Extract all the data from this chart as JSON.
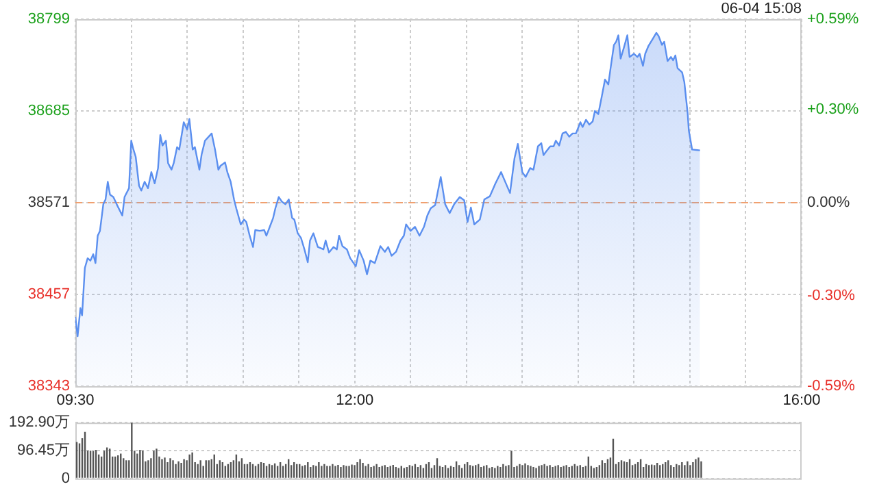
{
  "chart_data": [
    {
      "type": "area",
      "annotations": [
        "06-04 15:08"
      ],
      "x": [
        9.5,
        9.52,
        9.545,
        9.56,
        9.585,
        9.61,
        9.635,
        9.66,
        9.68,
        9.7,
        9.72,
        9.75,
        9.77,
        9.79,
        9.81,
        9.84,
        9.87,
        9.92,
        9.94,
        9.98,
        10.0,
        10.02,
        10.04,
        10.07,
        10.09,
        10.12,
        10.15,
        10.18,
        10.21,
        10.24,
        10.26,
        10.28,
        10.31,
        10.33,
        10.36,
        10.38,
        10.41,
        10.43,
        10.47,
        10.5,
        10.52,
        10.55,
        10.57,
        10.61,
        10.63,
        10.66,
        10.7,
        10.72,
        10.75,
        10.78,
        10.8,
        10.84,
        10.86,
        10.89,
        10.92,
        10.94,
        10.98,
        11.01,
        11.03,
        11.06,
        11.09,
        11.11,
        11.15,
        11.19,
        11.21,
        11.24,
        11.27,
        11.29,
        11.32,
        11.35,
        11.38,
        11.41,
        11.44,
        11.46,
        11.49,
        11.52,
        11.55,
        11.58,
        11.6,
        11.63,
        11.67,
        11.72,
        11.74,
        11.77,
        11.81,
        11.84,
        11.86,
        11.89,
        11.93,
        11.96,
        12.01,
        12.04,
        12.08,
        12.11,
        12.14,
        12.18,
        12.23,
        12.27,
        12.3,
        12.33,
        12.37,
        12.41,
        12.44,
        12.46,
        12.5,
        12.54,
        12.58,
        12.62,
        12.65,
        12.68,
        12.72,
        12.77,
        12.81,
        12.85,
        12.89,
        12.94,
        12.98,
        13.01,
        13.04,
        13.07,
        13.12,
        13.16,
        13.21,
        13.26,
        13.31,
        13.35,
        13.39,
        13.43,
        13.46,
        13.5,
        13.53,
        13.57,
        13.6,
        13.64,
        13.67,
        13.69,
        13.71,
        13.75,
        13.78,
        13.8,
        13.83,
        13.86,
        13.89,
        13.92,
        13.95,
        13.98,
        14.02,
        14.04,
        14.07,
        14.1,
        14.13,
        14.15,
        14.18,
        14.21,
        14.24,
        14.27,
        14.29,
        14.32,
        14.34,
        14.36,
        14.38,
        14.41,
        14.44,
        14.46,
        14.5,
        14.53,
        14.55,
        14.58,
        14.6,
        14.63,
        14.67,
        14.7,
        14.72,
        14.75,
        14.77,
        14.8,
        14.83,
        14.85,
        14.87,
        14.89,
        14.93,
        14.95,
        14.98,
        14.99,
        15.02,
        15.09
      ],
      "series": [
        {
          "color": "#5b8fef",
          "values": [
            38429,
            38405,
            38440,
            38431,
            38490,
            38502,
            38499,
            38507,
            38496,
            38530,
            38536,
            38569,
            38575,
            38597,
            38581,
            38578,
            38569,
            38555,
            38578,
            38589,
            38648,
            38637,
            38628,
            38592,
            38586,
            38597,
            38589,
            38609,
            38595,
            38614,
            38655,
            38642,
            38648,
            38620,
            38612,
            38620,
            38640,
            38637,
            38671,
            38662,
            38675,
            38637,
            38640,
            38612,
            38631,
            38648,
            38654,
            38657,
            38637,
            38612,
            38617,
            38621,
            38609,
            38597,
            38575,
            38564,
            38544,
            38550,
            38547,
            38530,
            38516,
            38537,
            38536,
            38537,
            38530,
            38541,
            38552,
            38564,
            38578,
            38572,
            38569,
            38575,
            38552,
            38550,
            38533,
            38527,
            38513,
            38497,
            38524,
            38533,
            38516,
            38513,
            38524,
            38509,
            38516,
            38513,
            38530,
            38517,
            38513,
            38502,
            38492,
            38512,
            38499,
            38482,
            38499,
            38496,
            38517,
            38510,
            38516,
            38505,
            38510,
            38524,
            38530,
            38544,
            38536,
            38541,
            38530,
            38541,
            38555,
            38564,
            38568,
            38603,
            38569,
            38558,
            38569,
            38578,
            38574,
            38547,
            38565,
            38544,
            38550,
            38575,
            38579,
            38595,
            38609,
            38596,
            38583,
            38626,
            38644,
            38609,
            38603,
            38614,
            38612,
            38641,
            38645,
            38630,
            38634,
            38641,
            38641,
            38648,
            38642,
            38657,
            38659,
            38653,
            38657,
            38657,
            38671,
            38665,
            38674,
            38668,
            38672,
            38685,
            38681,
            38702,
            38724,
            38718,
            38738,
            38767,
            38771,
            38779,
            38750,
            38764,
            38779,
            38752,
            38756,
            38752,
            38756,
            38741,
            38756,
            38766,
            38775,
            38782,
            38778,
            38767,
            38771,
            38747,
            38752,
            38748,
            38754,
            38738,
            38733,
            38721,
            38682,
            38661,
            38637,
            38636
          ]
        }
      ],
      "xlim": [
        9.5,
        16
      ],
      "xticks": [
        {
          "value": 9.5,
          "label": "09:30"
        },
        {
          "value": 10,
          "label": null
        },
        {
          "value": 10.5,
          "label": null
        },
        {
          "value": 11,
          "label": null
        },
        {
          "value": 11.5,
          "label": null
        },
        {
          "value": 12,
          "label": "12:00"
        },
        {
          "value": 12.5,
          "label": null
        },
        {
          "value": 13,
          "label": null
        },
        {
          "value": 13.5,
          "label": null
        },
        {
          "value": 14,
          "label": null
        },
        {
          "value": 14.5,
          "label": null
        },
        {
          "value": 15,
          "label": null
        },
        {
          "value": 15.5,
          "label": null
        },
        {
          "value": 16,
          "label": "16:00"
        }
      ],
      "ylim": [
        38343,
        38799
      ],
      "yticks": [
        38343,
        38457,
        38571,
        38685,
        38799
      ],
      "y2lim": [
        -0.59,
        0.59
      ],
      "y2ticks": [
        {
          "value": -0.59,
          "label": "-0.59%"
        },
        {
          "value": -0.3,
          "label": "-0.30%"
        },
        {
          "value": 0,
          "label": "0.00%"
        },
        {
          "value": 0.3,
          "label": "+0.30%"
        },
        {
          "value": 0.59,
          "label": "+0.59%"
        }
      ],
      "ref_lines": [
        {
          "axis": "y",
          "value": 38571,
          "color": "#f0a070",
          "line_style": "dashed"
        }
      ],
      "grid": true,
      "legend": false
    },
    {
      "type": "bar",
      "tick_labels": "y",
      "grid": "y",
      "legend": false,
      "categories": [
        null,
        null,
        null,
        null,
        null,
        null,
        null,
        null,
        null,
        null,
        null,
        null,
        null,
        null,
        null,
        null,
        null,
        null,
        null,
        null,
        null,
        null,
        null,
        null,
        null,
        null,
        null,
        null,
        null,
        null,
        null,
        null,
        null,
        null,
        null,
        null,
        null,
        null,
        null,
        null,
        null,
        null,
        null,
        null,
        null,
        null,
        null,
        null,
        null,
        null,
        null,
        null,
        null,
        null,
        null,
        null,
        null,
        null,
        null,
        null,
        null,
        null,
        null,
        null,
        null,
        null,
        null,
        null,
        null,
        null,
        null,
        null,
        null,
        null,
        null,
        null,
        null,
        null,
        null,
        null,
        null,
        null,
        null,
        null,
        null,
        null,
        null,
        null,
        null,
        null,
        null,
        null,
        null,
        null,
        null,
        null,
        null,
        null,
        null,
        null,
        null,
        null,
        null,
        null,
        null,
        null,
        null,
        null,
        null,
        null,
        null,
        null,
        null,
        null,
        null,
        null,
        null,
        null,
        null,
        null,
        null,
        null,
        null,
        null,
        null,
        null,
        null,
        null,
        null,
        null,
        null,
        null,
        null,
        null,
        null,
        null,
        null,
        null,
        null,
        null,
        null,
        null,
        null,
        null,
        null,
        null,
        null,
        null,
        null,
        null,
        null,
        null,
        null,
        null,
        null,
        null,
        null,
        null,
        null,
        null,
        null,
        null,
        null,
        null,
        null,
        null,
        null,
        null,
        null,
        null,
        null,
        null,
        null,
        null,
        null,
        null,
        null,
        null,
        null,
        null,
        null,
        null,
        null,
        null,
        null,
        null,
        null,
        null,
        null,
        null,
        null,
        null,
        null,
        null,
        null,
        null,
        null,
        null,
        null,
        null,
        null,
        null,
        null,
        null,
        null,
        null,
        null,
        null,
        null,
        null,
        null,
        null,
        null,
        null,
        null,
        null,
        null,
        null,
        null,
        null,
        null,
        null,
        null,
        null,
        null,
        null,
        null,
        null,
        null,
        null,
        null,
        null,
        null,
        null,
        null,
        null,
        null,
        null,
        null,
        null,
        null,
        null,
        null,
        null,
        null,
        null,
        null,
        null,
        null,
        null,
        null,
        null,
        null,
        null,
        null,
        null,
        null,
        null,
        null,
        null,
        null,
        null,
        null,
        null
      ],
      "series": [
        {
          "color": "#555555",
          "values": [
            126,
            121,
            139,
            161,
            96,
            96,
            94,
            99,
            83,
            76,
            96,
            107,
            103,
            76,
            76,
            80,
            86,
            70,
            63,
            63,
            192,
            96,
            86,
            99,
            96,
            59,
            63,
            70,
            96,
            103,
            76,
            67,
            72,
            56,
            70,
            63,
            50,
            59,
            54,
            67,
            63,
            83,
            90,
            56,
            50,
            63,
            43,
            63,
            63,
            67,
            83,
            50,
            63,
            56,
            43,
            50,
            56,
            63,
            83,
            59,
            70,
            50,
            50,
            56,
            50,
            43,
            50,
            56,
            54,
            43,
            50,
            46,
            52,
            43,
            56,
            43,
            50,
            67,
            46,
            56,
            50,
            50,
            43,
            46,
            56,
            40,
            46,
            43,
            56,
            43,
            50,
            43,
            43,
            50,
            43,
            47,
            40,
            46,
            43,
            43,
            48,
            46,
            56,
            67,
            54,
            43,
            50,
            40,
            43,
            50,
            40,
            43,
            46,
            40,
            43,
            47,
            40,
            36,
            43,
            36,
            40,
            46,
            43,
            50,
            40,
            46,
            36,
            50,
            56,
            36,
            46,
            70,
            43,
            40,
            46,
            36,
            43,
            40,
            59,
            46,
            36,
            50,
            56,
            46,
            43,
            46,
            50,
            40,
            43,
            46,
            36,
            40,
            36,
            43,
            40,
            50,
            43,
            46,
            96,
            40,
            43,
            50,
            46,
            52,
            46,
            43,
            40,
            36,
            43,
            46,
            50,
            43,
            46,
            40,
            43,
            46,
            40,
            43,
            46,
            40,
            43,
            50,
            43,
            46,
            40,
            43,
            76,
            43,
            36,
            40,
            46,
            63,
            54,
            67,
            72,
            137,
            50,
            56,
            63,
            59,
            56,
            67,
            46,
            50,
            56,
            67,
            40,
            50,
            46,
            48,
            46,
            54,
            46,
            50,
            56,
            63,
            46,
            40,
            50,
            46,
            56,
            46,
            59,
            46,
            56,
            67,
            72,
            59,
            null,
            null,
            null,
            null,
            null,
            null,
            null,
            null,
            null,
            null,
            null,
            null,
            null,
            null,
            null,
            null,
            null,
            null,
            null,
            null,
            null,
            null,
            null,
            null,
            null,
            null,
            null,
            null,
            null,
            null,
            null,
            null,
            null,
            null,
            null,
            null
          ]
        }
      ],
      "ylim": [
        0,
        192.9
      ],
      "yticks": [
        0,
        {
          "value": 96.45,
          "label": "96.45万"
        },
        {
          "value": 192.9,
          "label": "192.90万"
        }
      ]
    }
  ]
}
